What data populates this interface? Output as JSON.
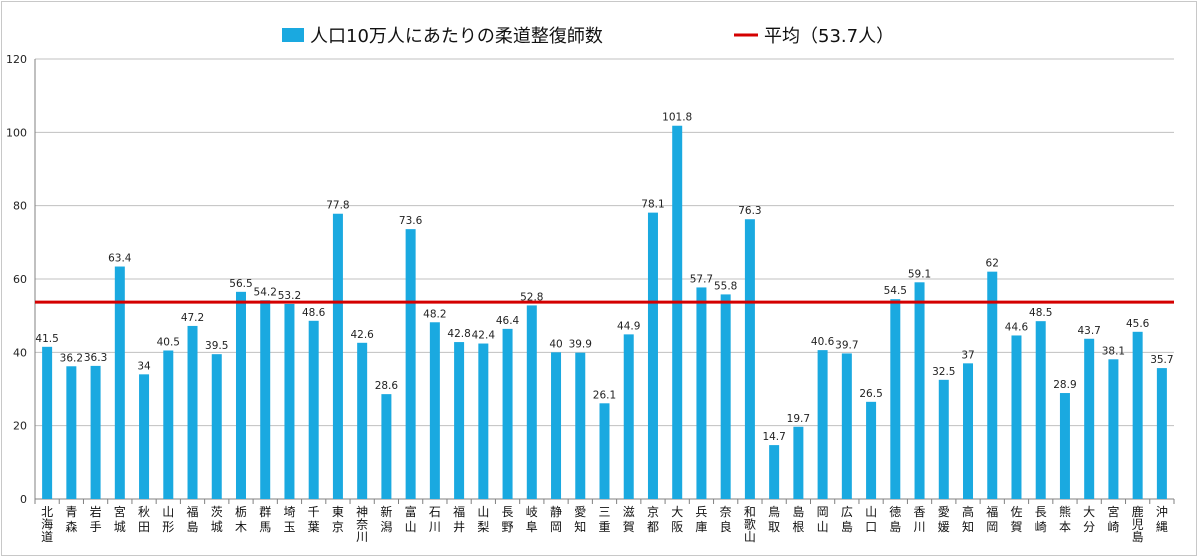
{
  "chart_data": {
    "type": "bar",
    "categories": [
      "北海道",
      "青森",
      "岩手",
      "宮城",
      "秋田",
      "山形",
      "福島",
      "茨城",
      "栃木",
      "群馬",
      "埼玉",
      "千葉",
      "東京",
      "神奈川",
      "新潟",
      "富山",
      "石川",
      "福井",
      "山梨",
      "長野",
      "岐阜",
      "静岡",
      "愛知",
      "三重",
      "滋賀",
      "京都",
      "大阪",
      "兵庫",
      "奈良",
      "和歌山",
      "鳥取",
      "島根",
      "岡山",
      "広島",
      "山口",
      "徳島",
      "香川",
      "愛媛",
      "高知",
      "福岡",
      "佐賀",
      "長崎",
      "熊本",
      "大分",
      "宮崎",
      "鹿児島",
      "沖縄"
    ],
    "series": [
      {
        "name": "人口10万人にあたりの柔道整復師数",
        "values": [
          41.5,
          36.2,
          36.3,
          63.4,
          34,
          40.5,
          47.2,
          39.5,
          56.5,
          54.2,
          53.2,
          48.6,
          77.8,
          42.6,
          28.6,
          73.6,
          48.2,
          42.8,
          42.4,
          46.4,
          52.8,
          40,
          39.9,
          26.1,
          44.9,
          78.1,
          101.8,
          57.7,
          55.8,
          76.3,
          14.7,
          19.7,
          40.6,
          39.7,
          26.5,
          54.5,
          59.1,
          32.5,
          37,
          62,
          44.6,
          48.5,
          28.9,
          43.7,
          38.1,
          45.6,
          35.7
        ]
      }
    ],
    "reference_line": {
      "name": "平均（53.7人）",
      "value": 53.7
    },
    "ylim": [
      0,
      120
    ],
    "yticks": [
      0,
      20,
      40,
      60,
      80,
      100,
      120
    ],
    "grid": true,
    "legend": "top-center",
    "title": "",
    "xlabel": "",
    "ylabel": "",
    "colors": {
      "bar": "#1aa9e0",
      "avg_line": "#d40000",
      "grid": "#c0c0c0",
      "axis": "#808080"
    }
  }
}
